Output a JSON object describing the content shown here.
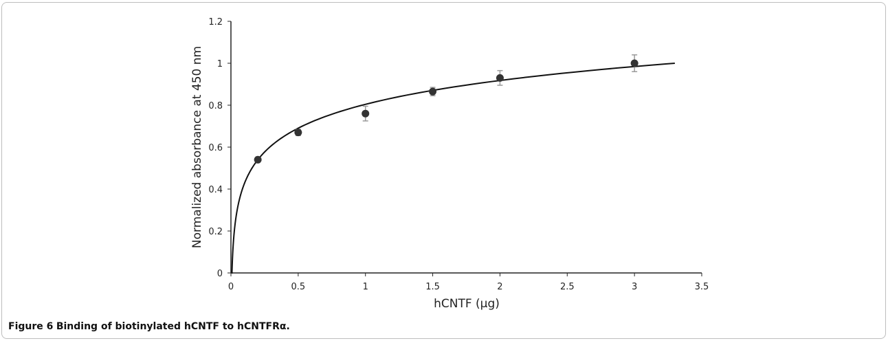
{
  "chart_data": {
    "type": "scatter",
    "title": "",
    "xlabel": "hCNTF (µg)",
    "ylabel": "Normalized absorbance at 450 nm",
    "xlim": [
      0,
      3.5
    ],
    "ylim": [
      0,
      1.2
    ],
    "x_ticks": [
      "0",
      "0.5",
      "1",
      "1.5",
      "2",
      "2.5",
      "3",
      "3.5"
    ],
    "y_ticks": [
      "0",
      "0.2",
      "0.4",
      "0.6",
      "0.8",
      "1",
      "1.2"
    ],
    "grid": false,
    "series": [
      {
        "points": [
          {
            "x": 0.2,
            "y": 0.54,
            "err": 0.01
          },
          {
            "x": 0.5,
            "y": 0.67,
            "err": 0.015
          },
          {
            "x": 1.0,
            "y": 0.76,
            "err": 0.035
          },
          {
            "x": 1.5,
            "y": 0.865,
            "err": 0.02
          },
          {
            "x": 2.0,
            "y": 0.93,
            "err": 0.035
          },
          {
            "x": 3.0,
            "y": 1.0,
            "err": 0.04
          }
        ]
      }
    ],
    "fit_curve": {
      "type": "logarithmic",
      "x_range": [
        0.01,
        3.3
      ],
      "points": [
        [
          0.01,
          0.0
        ],
        [
          0.05,
          0.36
        ],
        [
          0.1,
          0.45
        ],
        [
          0.2,
          0.54
        ],
        [
          0.5,
          0.67
        ],
        [
          1.0,
          0.78
        ],
        [
          1.5,
          0.86
        ],
        [
          2.0,
          0.92
        ],
        [
          2.5,
          0.96
        ],
        [
          3.0,
          0.99
        ],
        [
          3.3,
          1.0
        ]
      ]
    },
    "colors": {
      "marker": "#333333",
      "curve": "#111111",
      "errorbar": "#9a9a9a"
    }
  },
  "caption": {
    "label": "Figure 6",
    "text": "Binding of biotinylated hCNTF to hCNTFRα."
  }
}
